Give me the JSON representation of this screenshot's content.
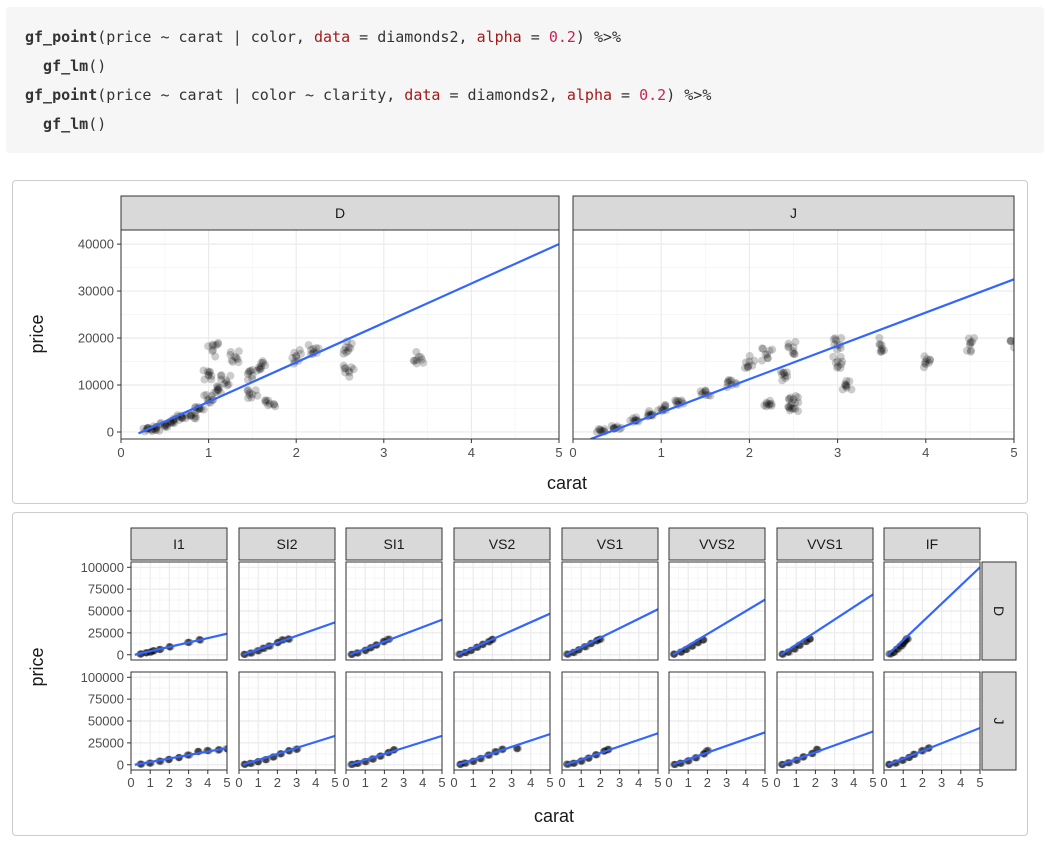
{
  "code": {
    "lines": [
      [
        {
          "t": "gf_point",
          "c": "kw"
        },
        {
          "t": "(price ~ carat | color, ",
          "c": "op"
        },
        {
          "t": "data",
          "c": "arg"
        },
        {
          "t": " = diamonds2, ",
          "c": "op"
        },
        {
          "t": "alpha",
          "c": "arg"
        },
        {
          "t": " = ",
          "c": "op"
        },
        {
          "t": "0.2",
          "c": "num"
        },
        {
          "t": ") %>%",
          "c": "op"
        }
      ],
      [
        {
          "t": "  gf_lm",
          "c": "kw"
        },
        {
          "t": "()",
          "c": "op"
        }
      ],
      [
        {
          "t": "gf_point",
          "c": "kw"
        },
        {
          "t": "(price ~ carat | color ~ clarity, ",
          "c": "op"
        },
        {
          "t": "data",
          "c": "arg"
        },
        {
          "t": " = diamonds2, ",
          "c": "op"
        },
        {
          "t": "alpha",
          "c": "arg"
        },
        {
          "t": " = ",
          "c": "op"
        },
        {
          "t": "0.2",
          "c": "num"
        },
        {
          "t": ") %>%",
          "c": "op"
        }
      ],
      [
        {
          "t": "  gf_lm",
          "c": "kw"
        },
        {
          "t": "()",
          "c": "op"
        }
      ]
    ]
  },
  "colors": {
    "strip_bg": "#d9d9d9",
    "strip_border": "#333333",
    "panel_border": "#333333",
    "grid_major": "#ebebeb",
    "grid_minor": "#f5f5f5",
    "line": "#3366ff",
    "point": "#000000"
  },
  "chart_data": [
    {
      "type": "scatter",
      "xlabel": "carat",
      "ylabel": "price",
      "xlim": [
        0,
        5
      ],
      "ylim": [
        0,
        40000
      ],
      "x_ticks": [
        "0",
        "1",
        "2",
        "3",
        "4",
        "5"
      ],
      "y_ticks": [
        "0",
        "10000",
        "20000",
        "30000",
        "40000"
      ],
      "x_tick_values": [
        0,
        1,
        2,
        3,
        4,
        5
      ],
      "y_tick_values": [
        0,
        10000,
        20000,
        30000,
        40000
      ],
      "grid": true,
      "facets": [
        {
          "label": "D",
          "fit": {
            "x": [
              0.2,
              5.0
            ],
            "y": [
              -300,
              40000
            ]
          },
          "points": [
            [
              0.3,
              500
            ],
            [
              0.5,
              1500
            ],
            [
              0.7,
              3000
            ],
            [
              0.9,
              5000
            ],
            [
              1.0,
              7000
            ],
            [
              1.1,
              9000
            ],
            [
              1.2,
              11000
            ],
            [
              1.5,
              12000
            ],
            [
              1.6,
              14000
            ],
            [
              2.0,
              16000
            ],
            [
              2.2,
              17000
            ],
            [
              2.6,
              18000
            ],
            [
              2.6,
              13000
            ],
            [
              3.4,
              16000
            ],
            [
              0.4,
              800
            ],
            [
              0.6,
              2200
            ],
            [
              0.8,
              3500
            ],
            [
              1.0,
              12000
            ],
            [
              1.05,
              17500
            ],
            [
              1.3,
              16000
            ],
            [
              1.5,
              8000
            ],
            [
              1.7,
              6000
            ]
          ]
        },
        {
          "label": "J",
          "fit": {
            "x": [
              0.2,
              5.0
            ],
            "y": [
              -1500,
              32500
            ]
          },
          "points": [
            [
              0.3,
              400
            ],
            [
              0.5,
              1200
            ],
            [
              0.7,
              2500
            ],
            [
              0.9,
              3800
            ],
            [
              1.0,
              5000
            ],
            [
              1.2,
              6500
            ],
            [
              1.5,
              8500
            ],
            [
              1.8,
              10000
            ],
            [
              2.0,
              15000
            ],
            [
              2.2,
              16500
            ],
            [
              2.5,
              18000
            ],
            [
              2.4,
              12000
            ],
            [
              2.5,
              7000
            ],
            [
              3.0,
              18500
            ],
            [
              3.0,
              15000
            ],
            [
              3.1,
              10000
            ],
            [
              3.5,
              18500
            ],
            [
              4.0,
              15000
            ],
            [
              4.5,
              18500
            ],
            [
              5.0,
              18000
            ],
            [
              2.5,
              5000
            ],
            [
              2.2,
              6000
            ]
          ]
        }
      ]
    },
    {
      "type": "scatter",
      "xlabel": "carat",
      "ylabel": "price",
      "xlim": [
        0,
        5
      ],
      "ylim": [
        0,
        100000
      ],
      "x_ticks": [
        "0",
        "1",
        "2",
        "3",
        "4",
        "5"
      ],
      "y_ticks": [
        "0",
        "25000",
        "50000",
        "75000",
        "100000"
      ],
      "x_tick_values": [
        0,
        1,
        2,
        3,
        4,
        5
      ],
      "y_tick_values": [
        0,
        25000,
        50000,
        75000,
        100000
      ],
      "grid": true,
      "cols": [
        "I1",
        "SI2",
        "SI1",
        "VS2",
        "VS1",
        "VVS2",
        "VVS1",
        "IF"
      ],
      "rows": [
        "D",
        "J"
      ],
      "facets": [
        {
          "row": "D",
          "col": "I1",
          "fit": {
            "x": [
              0.2,
              5.0
            ],
            "y": [
              0,
              24000
            ]
          },
          "points": [
            [
              0.5,
              800
            ],
            [
              0.8,
              2000
            ],
            [
              1.0,
              3000
            ],
            [
              1.2,
              4500
            ],
            [
              1.5,
              6000
            ],
            [
              2.0,
              9000
            ],
            [
              3.0,
              14000
            ],
            [
              3.6,
              17000
            ]
          ]
        },
        {
          "row": "D",
          "col": "SI2",
          "fit": {
            "x": [
              0.2,
              5.0
            ],
            "y": [
              0,
              37000
            ]
          },
          "points": [
            [
              0.3,
              500
            ],
            [
              0.6,
              2000
            ],
            [
              1.0,
              4500
            ],
            [
              1.3,
              7500
            ],
            [
              1.6,
              10000
            ],
            [
              2.0,
              14000
            ],
            [
              2.3,
              17000
            ],
            [
              2.6,
              18000
            ]
          ]
        },
        {
          "row": "D",
          "col": "SI1",
          "fit": {
            "x": [
              0.2,
              5.0
            ],
            "y": [
              0,
              40000
            ]
          },
          "points": [
            [
              0.3,
              500
            ],
            [
              0.6,
              2000
            ],
            [
              1.0,
              5000
            ],
            [
              1.3,
              8000
            ],
            [
              1.6,
              11000
            ],
            [
              2.0,
              15000
            ],
            [
              2.2,
              17500
            ]
          ]
        },
        {
          "row": "D",
          "col": "VS2",
          "fit": {
            "x": [
              0.2,
              5.0
            ],
            "y": [
              0,
              47000
            ]
          },
          "points": [
            [
              0.3,
              600
            ],
            [
              0.6,
              2500
            ],
            [
              0.9,
              5000
            ],
            [
              1.2,
              8500
            ],
            [
              1.5,
              12000
            ],
            [
              1.8,
              15000
            ],
            [
              2.0,
              17500
            ]
          ]
        },
        {
          "row": "D",
          "col": "VS1",
          "fit": {
            "x": [
              0.2,
              5.0
            ],
            "y": [
              0,
              52000
            ]
          },
          "points": [
            [
              0.3,
              600
            ],
            [
              0.6,
              2500
            ],
            [
              0.9,
              5500
            ],
            [
              1.2,
              9000
            ],
            [
              1.5,
              13000
            ],
            [
              1.8,
              16000
            ],
            [
              2.0,
              18000
            ]
          ]
        },
        {
          "row": "D",
          "col": "VVS2",
          "fit": {
            "x": [
              0.2,
              5.0
            ],
            "y": [
              0,
              63000
            ]
          },
          "points": [
            [
              0.3,
              700
            ],
            [
              0.6,
              3000
            ],
            [
              0.9,
              6000
            ],
            [
              1.2,
              10000
            ],
            [
              1.5,
              14000
            ],
            [
              1.8,
              17000
            ]
          ]
        },
        {
          "row": "D",
          "col": "VVS1",
          "fit": {
            "x": [
              0.2,
              5.0
            ],
            "y": [
              0,
              69000
            ]
          },
          "points": [
            [
              0.3,
              700
            ],
            [
              0.6,
              3000
            ],
            [
              0.9,
              6500
            ],
            [
              1.2,
              11000
            ],
            [
              1.5,
              15000
            ],
            [
              1.7,
              18000
            ]
          ]
        },
        {
          "row": "D",
          "col": "IF",
          "fit": {
            "x": [
              0.2,
              5.0
            ],
            "y": [
              0,
              100000
            ]
          },
          "points": [
            [
              0.3,
              800
            ],
            [
              0.5,
              3000
            ],
            [
              0.7,
              6500
            ],
            [
              0.9,
              10000
            ],
            [
              1.0,
              13000
            ],
            [
              1.1,
              16000
            ],
            [
              1.2,
              18500
            ]
          ]
        },
        {
          "row": "J",
          "col": "I1",
          "fit": {
            "x": [
              0.2,
              5.0
            ],
            "y": [
              0,
              19000
            ]
          },
          "points": [
            [
              0.5,
              600
            ],
            [
              1.0,
              2000
            ],
            [
              1.5,
              4000
            ],
            [
              2.0,
              6000
            ],
            [
              2.5,
              8000
            ],
            [
              3.0,
              11000
            ],
            [
              3.5,
              15000
            ],
            [
              4.0,
              16500
            ],
            [
              4.6,
              17000
            ],
            [
              5.0,
              18000
            ]
          ]
        },
        {
          "row": "J",
          "col": "SI2",
          "fit": {
            "x": [
              0.2,
              5.0
            ],
            "y": [
              0,
              33000
            ]
          },
          "points": [
            [
              0.3,
              400
            ],
            [
              0.6,
              1500
            ],
            [
              1.0,
              3500
            ],
            [
              1.4,
              6000
            ],
            [
              1.8,
              9000
            ],
            [
              2.2,
              12500
            ],
            [
              2.6,
              16000
            ],
            [
              3.0,
              18000
            ]
          ]
        },
        {
          "row": "J",
          "col": "SI1",
          "fit": {
            "x": [
              0.2,
              5.0
            ],
            "y": [
              0,
              33000
            ]
          },
          "points": [
            [
              0.3,
              400
            ],
            [
              0.6,
              1500
            ],
            [
              1.0,
              3500
            ],
            [
              1.4,
              6500
            ],
            [
              1.8,
              10000
            ],
            [
              2.2,
              14000
            ],
            [
              2.5,
              17000
            ]
          ]
        },
        {
          "row": "J",
          "col": "VS2",
          "fit": {
            "x": [
              0.2,
              5.0
            ],
            "y": [
              0,
              35000
            ]
          },
          "points": [
            [
              0.3,
              400
            ],
            [
              0.6,
              1800
            ],
            [
              1.0,
              4000
            ],
            [
              1.4,
              7000
            ],
            [
              1.8,
              11000
            ],
            [
              2.2,
              15000
            ],
            [
              2.5,
              17500
            ],
            [
              3.3,
              18500
            ]
          ]
        },
        {
          "row": "J",
          "col": "VS1",
          "fit": {
            "x": [
              0.2,
              5.0
            ],
            "y": [
              0,
              36000
            ]
          },
          "points": [
            [
              0.3,
              400
            ],
            [
              0.6,
              1800
            ],
            [
              1.0,
              4200
            ],
            [
              1.4,
              7500
            ],
            [
              1.8,
              11500
            ],
            [
              2.2,
              15500
            ],
            [
              2.4,
              17500
            ]
          ]
        },
        {
          "row": "J",
          "col": "VVS2",
          "fit": {
            "x": [
              0.2,
              5.0
            ],
            "y": [
              0,
              37000
            ]
          },
          "points": [
            [
              0.3,
              400
            ],
            [
              0.6,
              1800
            ],
            [
              1.0,
              4500
            ],
            [
              1.4,
              8000
            ],
            [
              1.8,
              12500
            ],
            [
              2.0,
              16000
            ]
          ]
        },
        {
          "row": "J",
          "col": "VVS1",
          "fit": {
            "x": [
              0.2,
              5.0
            ],
            "y": [
              0,
              38000
            ]
          },
          "points": [
            [
              0.3,
              400
            ],
            [
              0.6,
              2000
            ],
            [
              1.0,
              5000
            ],
            [
              1.4,
              9000
            ],
            [
              1.8,
              13000
            ],
            [
              2.1,
              17500
            ]
          ]
        },
        {
          "row": "J",
          "col": "IF",
          "fit": {
            "x": [
              0.2,
              5.0
            ],
            "y": [
              0,
              42000
            ]
          },
          "points": [
            [
              0.3,
              400
            ],
            [
              0.6,
              2000
            ],
            [
              1.0,
              5000
            ],
            [
              1.3,
              8000
            ],
            [
              1.6,
              12000
            ],
            [
              2.0,
              16000
            ],
            [
              2.3,
              19000
            ]
          ]
        }
      ]
    }
  ]
}
